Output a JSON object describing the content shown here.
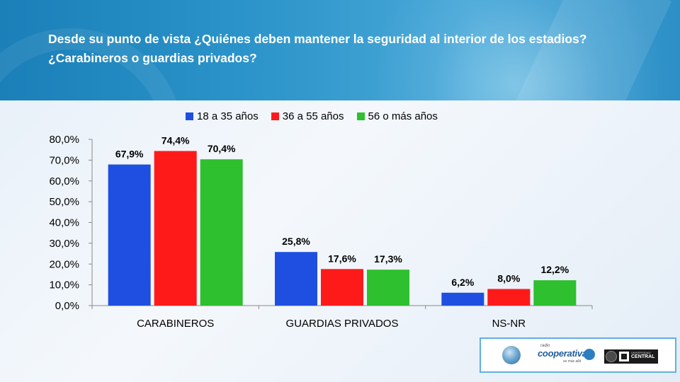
{
  "title": "Desde su punto de vista ¿Quiénes deben mantener la seguridad al interior de los estadios? ¿Carabineros o guardias privados?",
  "chart_data": {
    "type": "bar",
    "categories": [
      "CARABINEROS",
      "GUARDIAS PRIVADOS",
      "NS-NR"
    ],
    "series": [
      {
        "name": "18 a 35 años",
        "color": "#1f4fe0",
        "values": [
          67.9,
          25.8,
          6.2
        ],
        "labels": [
          "67,9%",
          "25,8%",
          "6,2%"
        ]
      },
      {
        "name": "36 a 55 años",
        "color": "#ff1a1a",
        "values": [
          74.4,
          17.6,
          8.0
        ],
        "labels": [
          "74,4%",
          "17,6%",
          "8,0%"
        ]
      },
      {
        "name": "56 o más años",
        "color": "#2ec02e",
        "values": [
          70.4,
          17.3,
          12.2
        ],
        "labels": [
          "70,4%",
          "17,3%",
          "12,2%"
        ]
      }
    ],
    "ylim": [
      0,
      80
    ],
    "yticks": [
      0,
      10,
      20,
      30,
      40,
      50,
      60,
      70,
      80
    ],
    "ytick_labels": [
      "0,0%",
      "10,0%",
      "20,0%",
      "30,0%",
      "40,0%",
      "50,0%",
      "60,0%",
      "70,0%",
      "80,0%"
    ],
    "legend": "top",
    "grid": false
  },
  "logos": {
    "cooperativa_top": "radio",
    "cooperativa_name": "cooperativa",
    "cooperativa_tagline": "se más allá",
    "ucen_top": "UNIVERSIDAD",
    "ucen_name": "CENTRAL"
  }
}
